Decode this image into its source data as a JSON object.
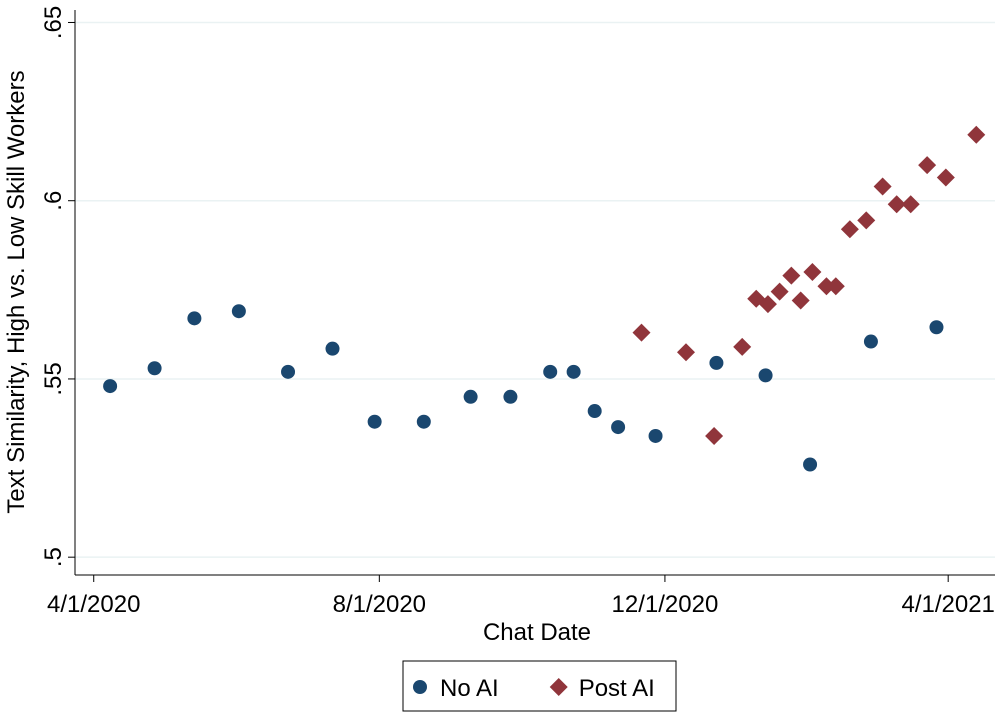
{
  "chart_data": {
    "type": "scatter",
    "xlabel": "Chat Date",
    "ylabel": "Text Similarity, High vs. Low Skill Workers",
    "xlim": [
      "2020-03-24",
      "2021-04-21"
    ],
    "xticks": [
      {
        "value": "2020-04-01",
        "label": "4/1/2020"
      },
      {
        "value": "2020-08-01",
        "label": "8/1/2020"
      },
      {
        "value": "2020-12-01",
        "label": "12/1/2020"
      },
      {
        "value": "2021-04-01",
        "label": "4/1/2021"
      }
    ],
    "ylim": [
      0.495,
      0.6535
    ],
    "yticks": [
      {
        "value": 0.5,
        "label": ".5"
      },
      {
        "value": 0.55,
        "label": ".55"
      },
      {
        "value": 0.6,
        "label": ".6"
      },
      {
        "value": 0.65,
        "label": ".65"
      }
    ],
    "grid": true,
    "legend": "bottom",
    "series": [
      {
        "name": "No AI",
        "color": "#1a476f",
        "marker": "circle",
        "x": [
          "2020-04-08",
          "2020-04-27",
          "2020-05-14",
          "2020-06-02",
          "2020-06-23",
          "2020-07-12",
          "2020-07-30",
          "2020-08-20",
          "2020-09-09",
          "2020-09-26",
          "2020-10-13",
          "2020-10-23",
          "2020-11-01",
          "2020-11-11",
          "2020-11-27",
          "2020-12-23",
          "2021-01-13",
          "2021-02-01",
          "2021-02-27",
          "2021-03-27"
        ],
        "values": [
          0.548,
          0.553,
          0.567,
          0.569,
          0.552,
          0.5585,
          0.538,
          0.538,
          0.545,
          0.545,
          0.552,
          0.552,
          0.541,
          0.5365,
          0.534,
          0.5545,
          0.551,
          0.526,
          0.5605,
          0.5645
        ]
      },
      {
        "name": "Post AI",
        "color": "#90353b",
        "marker": "diamond",
        "x": [
          "2020-11-21",
          "2020-12-10",
          "2020-12-22",
          "2021-01-03",
          "2021-01-09",
          "2021-01-14",
          "2021-01-19",
          "2021-01-24",
          "2021-01-28",
          "2021-02-02",
          "2021-02-08",
          "2021-02-12",
          "2021-02-18",
          "2021-02-25",
          "2021-03-04",
          "2021-03-10",
          "2021-03-16",
          "2021-03-23",
          "2021-03-31",
          "2021-04-13"
        ],
        "values": [
          0.563,
          0.5575,
          0.534,
          0.559,
          0.5725,
          0.571,
          0.5745,
          0.579,
          0.572,
          0.58,
          0.576,
          0.576,
          0.592,
          0.5945,
          0.604,
          0.599,
          0.599,
          0.61,
          0.6065,
          0.6185
        ]
      }
    ]
  }
}
